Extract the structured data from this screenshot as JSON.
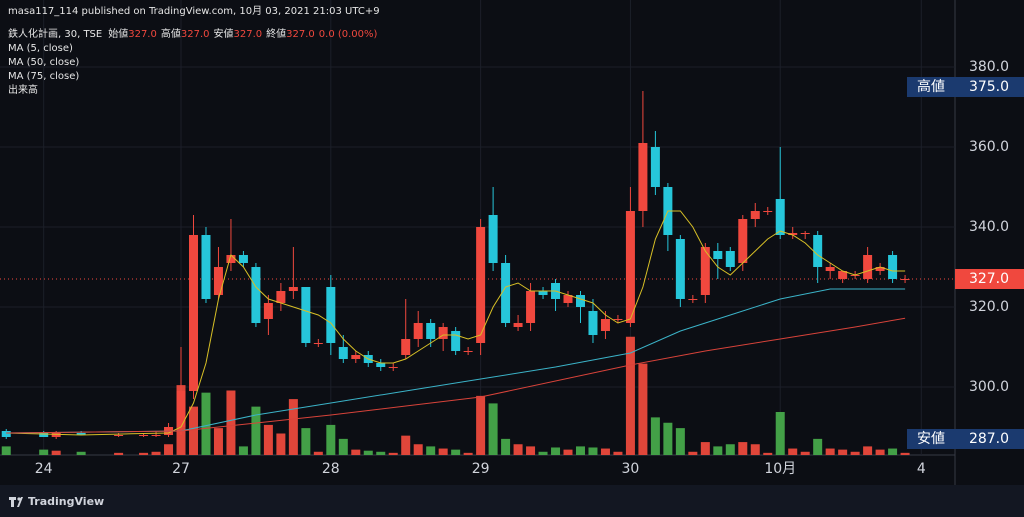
{
  "chart_data": {
    "type": "candlestick",
    "publisher": "masa117_114 published on TradingView.com, 10月 03, 2021 21:03 UTC+9",
    "legend": {
      "symbol": "鉄人化計画, 30, TSE",
      "items": [
        {
          "label": "始値",
          "value": "327.0"
        },
        {
          "label": "高値",
          "value": "327.0"
        },
        {
          "label": "安値",
          "value": "327.0"
        },
        {
          "label": "終値",
          "value": "327.0"
        }
      ],
      "change": "0.0 (0.00%)"
    },
    "volume_name": "出来高",
    "brand": "TradingView",
    "up_color": "#f0483e",
    "down_color": "#26c6da",
    "volume_up_color": "#e0463a",
    "volume_down_color": "#43a047",
    "xlim": [
      -14.5,
      62
    ],
    "xticks": [
      {
        "value": -11,
        "label": "24"
      },
      {
        "value": 0,
        "label": "27"
      },
      {
        "value": 12,
        "label": "28"
      },
      {
        "value": 24,
        "label": "29"
      },
      {
        "value": 36,
        "label": "30"
      },
      {
        "value": 48,
        "label": "10月"
      },
      {
        "value": 59.3,
        "label": "4"
      }
    ],
    "ylim": [
      283,
      390.5
    ],
    "yticks": [
      {
        "value": 300,
        "label": "300.0"
      },
      {
        "value": 320,
        "label": "320.0"
      },
      {
        "value": 340,
        "label": "340.0"
      },
      {
        "value": 360,
        "label": "360.0"
      },
      {
        "value": 380,
        "label": "380.0"
      }
    ],
    "volume_lim": [
      0,
      400
    ],
    "grid": true,
    "x": [
      -14,
      -11,
      -10,
      -8,
      -5,
      -3,
      -2,
      -1,
      0,
      1,
      2,
      3,
      4,
      5,
      6,
      7,
      8,
      9,
      10,
      11,
      12,
      13,
      14,
      15,
      16,
      17,
      18,
      19,
      20,
      21,
      22,
      23,
      24,
      25,
      26,
      27,
      28,
      29,
      30,
      31,
      32,
      33,
      34,
      35,
      36,
      37,
      38,
      39,
      40,
      41,
      42,
      43,
      44,
      45,
      46,
      47,
      48,
      49,
      50,
      51,
      52,
      53,
      54,
      55,
      56,
      57,
      58
    ],
    "open": [
      289,
      288.5,
      287.5,
      288.5,
      288,
      288,
      288,
      288,
      290,
      299,
      338,
      323,
      331,
      333,
      330,
      317,
      321,
      324,
      325,
      311,
      325,
      310,
      307,
      308,
      306,
      305,
      308,
      312,
      316,
      312,
      314,
      309,
      311,
      343,
      331,
      315,
      316,
      324,
      326,
      321,
      323,
      319,
      314,
      317,
      316,
      344,
      360,
      350,
      337,
      322,
      323,
      334,
      334,
      331,
      342,
      344,
      347,
      338,
      338.5,
      338,
      329,
      327,
      328,
      327,
      329,
      333,
      327
    ],
    "high": [
      289.5,
      289,
      289,
      289,
      288.5,
      288.5,
      289,
      291,
      310,
      343,
      340,
      335,
      342,
      334,
      331,
      323,
      326,
      335,
      325,
      312,
      328,
      313,
      309,
      309,
      307,
      306,
      322,
      319,
      317,
      316,
      315,
      310,
      342,
      350,
      333,
      318,
      326,
      325,
      327,
      324,
      324,
      322,
      319,
      318,
      350,
      374,
      364,
      351,
      338,
      323,
      336,
      336,
      335,
      343,
      346,
      345,
      360,
      340,
      339,
      339,
      331,
      329,
      329,
      335,
      331,
      334,
      328
    ],
    "low": [
      287,
      287.5,
      287,
      288,
      287.5,
      287.5,
      287.5,
      287.5,
      288,
      297,
      321,
      322,
      329,
      330,
      315,
      313,
      319,
      322,
      310,
      310,
      308,
      306,
      306,
      305,
      304,
      304,
      307,
      310,
      310,
      309,
      308,
      308,
      308,
      329,
      315,
      314,
      314,
      322,
      319,
      320,
      316,
      311,
      312,
      316,
      315,
      340,
      348,
      334,
      320,
      321,
      321,
      327,
      329,
      329,
      340,
      343,
      337,
      337,
      337,
      326,
      327,
      326,
      327,
      326,
      328,
      326,
      326
    ],
    "close": [
      287.5,
      287.5,
      288.5,
      288,
      288,
      288,
      288,
      290,
      299,
      338,
      322,
      330,
      333,
      331,
      316,
      321,
      324,
      325,
      311,
      311,
      311,
      307,
      308,
      306,
      305,
      305,
      312,
      316,
      312,
      315,
      309,
      309,
      340,
      331,
      316,
      316,
      324,
      323,
      322,
      323,
      320,
      313,
      317,
      317,
      344,
      361,
      350,
      338,
      322,
      322,
      335,
      332,
      330,
      342,
      344,
      344,
      338,
      338.5,
      338.5,
      330,
      330,
      329,
      328,
      333,
      330,
      327,
      327
    ],
    "volume": [
      8,
      5,
      4,
      3,
      2,
      2,
      3,
      10,
      65,
      45,
      58,
      25,
      60,
      8,
      45,
      28,
      20,
      52,
      25,
      3,
      28,
      15,
      5,
      4,
      3,
      2,
      18,
      10,
      8,
      6,
      5,
      2,
      55,
      48,
      15,
      10,
      8,
      3,
      7,
      5,
      8,
      7,
      6,
      3,
      110,
      85,
      35,
      30,
      25,
      3,
      12,
      8,
      10,
      12,
      10,
      2,
      40,
      6,
      3,
      15,
      6,
      5,
      3,
      8,
      5,
      6,
      2
    ],
    "series": [
      {
        "name": "MA (5, close)",
        "color": "#d8c026",
        "x": [
          -14,
          -8,
          -4,
          -1,
          0,
          1,
          2,
          3,
          4,
          5,
          6,
          7,
          8,
          9,
          10,
          11,
          12,
          13,
          14,
          15,
          16,
          17,
          18,
          19,
          20,
          21,
          22,
          23,
          24,
          25,
          26,
          27,
          28,
          29,
          30,
          31,
          32,
          33,
          34,
          35,
          36,
          37,
          38,
          39,
          40,
          41,
          42,
          43,
          44,
          45,
          46,
          47,
          48,
          49,
          50,
          51,
          52,
          53,
          54,
          55,
          56,
          57,
          58
        ],
        "values": [
          288.5,
          288,
          288.3,
          288.5,
          290,
          296,
          306,
          322,
          333,
          330,
          325,
          322,
          321,
          320,
          319,
          318,
          316,
          312,
          309,
          307,
          306,
          306,
          307,
          309,
          311,
          313,
          313,
          312,
          313,
          320,
          325,
          326,
          324,
          324,
          324,
          323,
          322,
          321,
          318,
          316,
          317,
          325,
          337,
          344,
          344,
          340,
          334,
          330,
          328,
          331,
          334,
          337,
          339,
          338,
          336,
          333,
          331,
          329,
          328,
          329,
          330,
          329,
          329
        ]
      },
      {
        "name": "MA (50, close)",
        "color": "#3bb3c8",
        "x": [
          -14,
          0,
          6,
          12,
          18,
          24,
          30,
          36,
          40,
          44,
          48,
          52,
          58
        ],
        "values": [
          288.5,
          289,
          293,
          296,
          299,
          302,
          305,
          308.5,
          314,
          318,
          322,
          324.5,
          324.5
        ]
      },
      {
        "name": "MA (75, close)",
        "color": "#d8433a",
        "x": [
          -14,
          0,
          12,
          24,
          36,
          42,
          48,
          54,
          58
        ],
        "values": [
          288.5,
          289,
          293,
          297.5,
          305.5,
          309,
          312,
          315,
          317.2
        ]
      }
    ],
    "badges": [
      {
        "label": "高値",
        "value": 375,
        "value_label": "375.0",
        "color": "#1b3a6f"
      },
      {
        "label": "安値",
        "value": 287,
        "value_label": "287.0",
        "color": "#1b3a6f"
      }
    ],
    "last": {
      "value": 327,
      "value_label": "327.0",
      "color": "#f0483e"
    }
  }
}
